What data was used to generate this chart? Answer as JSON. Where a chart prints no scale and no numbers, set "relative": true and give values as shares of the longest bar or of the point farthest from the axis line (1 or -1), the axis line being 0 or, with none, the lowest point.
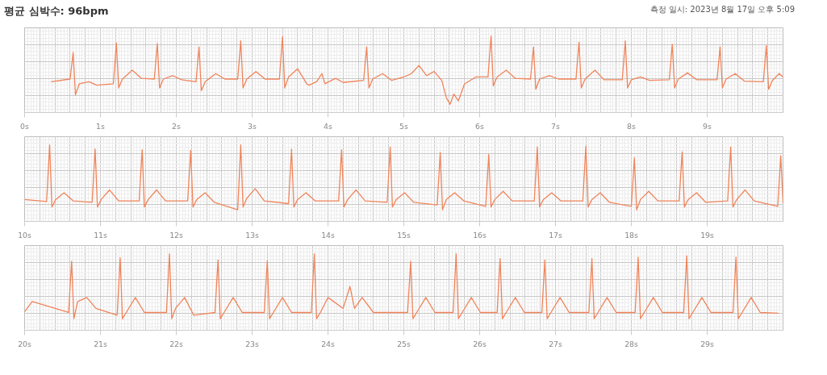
{
  "chart_data": [
    {
      "type": "line",
      "title": "평균 심박수: 96bpm",
      "annotations": [
        "측정 일시: 2023년 8월 17일 오후 5:09"
      ],
      "relative": true,
      "grid": true,
      "tick_labels": "x",
      "xlim": [
        0,
        10
      ],
      "xticks": [
        {
          "value": 0,
          "label": "0s"
        },
        {
          "value": 1,
          "label": "1s"
        },
        {
          "value": 2,
          "label": "2s"
        },
        {
          "value": 3,
          "label": "3s"
        },
        {
          "value": 4,
          "label": "4s"
        },
        {
          "value": 5,
          "label": "5s"
        },
        {
          "value": 6,
          "label": "6s"
        },
        {
          "value": 7,
          "label": "7s"
        },
        {
          "value": 8,
          "label": "8s"
        },
        {
          "value": 9,
          "label": "9s"
        }
      ],
      "series": [
        {
          "color": "#f0845a",
          "x": [
            0.35,
            0.6,
            0.64,
            0.67,
            0.72,
            0.85,
            0.95,
            1.17,
            1.21,
            1.24,
            1.29,
            1.42,
            1.54,
            1.71,
            1.75,
            1.78,
            1.83,
            1.95,
            2.07,
            2.26,
            2.3,
            2.33,
            2.38,
            2.52,
            2.64,
            2.81,
            2.85,
            2.88,
            2.93,
            3.05,
            3.17,
            3.36,
            3.4,
            3.43,
            3.48,
            3.6,
            3.72,
            3.75,
            3.85,
            3.92,
            3.96,
            4.1,
            4.2,
            4.47,
            4.51,
            4.54,
            4.59,
            4.72,
            4.84,
            5.0,
            5.1,
            5.2,
            5.3,
            5.4,
            5.5,
            5.56,
            5.61,
            5.66,
            5.72,
            5.8,
            5.95,
            6.11,
            6.15,
            6.18,
            6.23,
            6.35,
            6.47,
            6.67,
            6.71,
            6.74,
            6.79,
            6.92,
            7.04,
            7.27,
            7.31,
            7.34,
            7.39,
            7.52,
            7.64,
            7.88,
            7.92,
            7.95,
            8.0,
            8.12,
            8.24,
            8.5,
            8.54,
            8.57,
            8.62,
            8.74,
            8.86,
            9.13,
            9.17,
            9.2,
            9.25,
            9.37,
            9.49,
            9.74,
            9.78,
            9.81,
            9.86,
            9.95,
            10
          ],
          "values": [
            0.33,
            0.37,
            0.76,
            0.14,
            0.3,
            0.33,
            0.28,
            0.3,
            0.9,
            0.24,
            0.37,
            0.5,
            0.38,
            0.37,
            0.89,
            0.24,
            0.37,
            0.42,
            0.36,
            0.33,
            0.84,
            0.2,
            0.33,
            0.45,
            0.37,
            0.37,
            0.93,
            0.24,
            0.37,
            0.48,
            0.37,
            0.37,
            0.99,
            0.24,
            0.4,
            0.52,
            0.3,
            0.28,
            0.33,
            0.45,
            0.3,
            0.38,
            0.32,
            0.35,
            0.84,
            0.24,
            0.37,
            0.45,
            0.35,
            0.4,
            0.45,
            0.57,
            0.42,
            0.48,
            0.35,
            0.1,
            0,
            0.15,
            0.05,
            0.3,
            0.4,
            0.4,
            1,
            0.27,
            0.4,
            0.5,
            0.38,
            0.37,
            0.84,
            0.22,
            0.37,
            0.42,
            0.37,
            0.37,
            0.91,
            0.24,
            0.37,
            0.5,
            0.36,
            0.36,
            0.93,
            0.24,
            0.36,
            0.4,
            0.35,
            0.36,
            0.88,
            0.24,
            0.37,
            0.46,
            0.36,
            0.36,
            0.84,
            0.24,
            0.37,
            0.45,
            0.34,
            0.33,
            0.86,
            0.22,
            0.35,
            0.45,
            0.4
          ]
        }
      ]
    },
    {
      "type": "line",
      "relative": true,
      "grid": true,
      "tick_labels": "x",
      "xlim": [
        10,
        20
      ],
      "xticks": [
        {
          "value": 10,
          "label": "10s"
        },
        {
          "value": 11,
          "label": "11s"
        },
        {
          "value": 12,
          "label": "12s"
        },
        {
          "value": 13,
          "label": "13s"
        },
        {
          "value": 14,
          "label": "14s"
        },
        {
          "value": 15,
          "label": "15s"
        },
        {
          "value": 16,
          "label": "16s"
        },
        {
          "value": 17,
          "label": "17s"
        },
        {
          "value": 18,
          "label": "18s"
        },
        {
          "value": 19,
          "label": "19s"
        }
      ],
      "series": [
        {
          "color": "#f0845a",
          "x": [
            10,
            10.29,
            10.33,
            10.36,
            10.41,
            10.52,
            10.64,
            10.89,
            10.93,
            10.96,
            11.01,
            11.12,
            11.24,
            11.51,
            11.55,
            11.58,
            11.63,
            11.74,
            11.86,
            12.15,
            12.19,
            12.22,
            12.27,
            12.38,
            12.5,
            12.81,
            12.85,
            12.88,
            12.93,
            13.04,
            13.16,
            13.48,
            13.52,
            13.55,
            13.6,
            13.71,
            13.83,
            14.14,
            14.18,
            14.21,
            14.26,
            14.37,
            14.49,
            14.78,
            14.82,
            14.85,
            14.9,
            15.01,
            15.13,
            15.44,
            15.48,
            15.51,
            15.56,
            15.67,
            15.79,
            16.08,
            16.12,
            16.15,
            16.2,
            16.31,
            16.43,
            16.72,
            16.76,
            16.79,
            16.84,
            16.95,
            17.07,
            17.36,
            17.4,
            17.43,
            17.48,
            17.59,
            17.71,
            18.0,
            18.04,
            18.07,
            18.12,
            18.23,
            18.35,
            18.63,
            18.67,
            18.7,
            18.75,
            18.86,
            18.98,
            19.27,
            19.31,
            19.34,
            19.39,
            19.5,
            19.62,
            19.93,
            19.97,
            20
          ],
          "values": [
            0.2,
            0.17,
            1,
            0.09,
            0.2,
            0.3,
            0.18,
            0.16,
            0.94,
            0.09,
            0.2,
            0.34,
            0.18,
            0.18,
            0.93,
            0.09,
            0.2,
            0.34,
            0.18,
            0.18,
            0.92,
            0.09,
            0.2,
            0.3,
            0.16,
            0.05,
            1,
            0.09,
            0.22,
            0.36,
            0.18,
            0.14,
            0.94,
            0.09,
            0.2,
            0.3,
            0.18,
            0.18,
            0.93,
            0.09,
            0.2,
            0.34,
            0.18,
            0.16,
            0.97,
            0.09,
            0.2,
            0.3,
            0.16,
            0.12,
            0.89,
            0.05,
            0.2,
            0.3,
            0.18,
            0.1,
            0.86,
            0.09,
            0.2,
            0.32,
            0.18,
            0.18,
            0.97,
            0.09,
            0.2,
            0.3,
            0.18,
            0.18,
            0.98,
            0.09,
            0.2,
            0.3,
            0.16,
            0.1,
            0.81,
            0.05,
            0.2,
            0.32,
            0.18,
            0.18,
            0.9,
            0.09,
            0.2,
            0.3,
            0.16,
            0.18,
            0.97,
            0.09,
            0.2,
            0.34,
            0.18,
            0.1,
            0.84,
            0.15
          ]
        }
      ]
    },
    {
      "type": "line",
      "relative": true,
      "grid": true,
      "tick_labels": "x",
      "xlim": [
        20,
        30
      ],
      "xticks": [
        {
          "value": 20,
          "label": "20s"
        },
        {
          "value": 21,
          "label": "21s"
        },
        {
          "value": 22,
          "label": "22s"
        },
        {
          "value": 23,
          "label": "23s"
        },
        {
          "value": 24,
          "label": "24s"
        },
        {
          "value": 25,
          "label": "25s"
        },
        {
          "value": 26,
          "label": "26s"
        },
        {
          "value": 27,
          "label": "27s"
        },
        {
          "value": 28,
          "label": "28s"
        },
        {
          "value": 29,
          "label": "29s"
        }
      ],
      "series": [
        {
          "color": "#f0845a",
          "x": [
            20,
            20.1,
            20.58,
            20.62,
            20.65,
            20.7,
            20.82,
            20.94,
            21.22,
            21.26,
            21.29,
            21.34,
            21.46,
            21.58,
            21.87,
            21.91,
            21.94,
            21.99,
            22.11,
            22.23,
            22.51,
            22.55,
            22.58,
            22.63,
            22.75,
            22.87,
            23.16,
            23.2,
            23.23,
            23.28,
            23.4,
            23.52,
            23.78,
            23.82,
            23.85,
            23.9,
            24.0,
            24.2,
            24.29,
            24.35,
            24.45,
            24.6,
            25.05,
            25.09,
            25.12,
            25.17,
            25.29,
            25.41,
            25.65,
            25.69,
            25.72,
            25.77,
            25.89,
            26.01,
            26.23,
            26.27,
            26.3,
            26.35,
            26.47,
            26.59,
            26.82,
            26.86,
            26.89,
            26.94,
            27.06,
            27.18,
            27.44,
            27.48,
            27.51,
            27.56,
            27.68,
            27.8,
            28.05,
            28.09,
            28.12,
            28.17,
            28.29,
            28.41,
            28.69,
            28.73,
            28.76,
            28.81,
            28.93,
            29.05,
            29.34,
            29.38,
            29.41,
            29.46,
            29.58,
            29.7,
            29.94
          ],
          "values": [
            0.15,
            0.3,
            0.14,
            0.89,
            0.05,
            0.3,
            0.36,
            0.2,
            0.1,
            0.94,
            0.05,
            0.14,
            0.36,
            0.14,
            0.14,
            1,
            0.05,
            0.2,
            0.36,
            0.1,
            0.14,
            0.91,
            0.05,
            0.14,
            0.36,
            0.14,
            0.14,
            0.9,
            0.05,
            0.14,
            0.36,
            0.14,
            0.14,
            1,
            0.05,
            0.14,
            0.36,
            0.2,
            0.52,
            0.2,
            0.36,
            0.14,
            0.14,
            0.89,
            0.05,
            0.14,
            0.36,
            0.14,
            0.14,
            1,
            0.05,
            0.14,
            0.36,
            0.14,
            0.14,
            0.93,
            0.05,
            0.14,
            0.36,
            0.14,
            0.14,
            0.91,
            0.05,
            0.14,
            0.36,
            0.14,
            0.14,
            0.93,
            0.05,
            0.14,
            0.36,
            0.14,
            0.14,
            0.95,
            0.05,
            0.14,
            0.36,
            0.14,
            0.14,
            0.97,
            0.05,
            0.14,
            0.36,
            0.14,
            0.14,
            0.95,
            0.05,
            0.14,
            0.36,
            0.14,
            0.13
          ]
        }
      ]
    }
  ]
}
